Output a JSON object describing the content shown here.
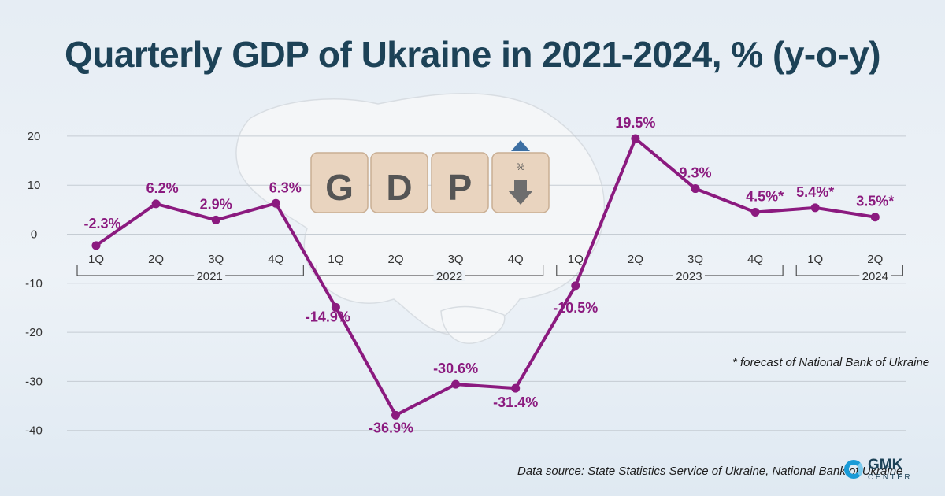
{
  "title": "Quarterly GDP of Ukraine in 2021-2024, % (y-o-y)",
  "footnote": "* forecast of National Bank of Ukraine",
  "source": "Data source: State Statistics Service of Ukraine, National Bank of Ukraine",
  "logo": {
    "name": "GMK",
    "sub": "CENTER"
  },
  "image_text": {
    "blocks": [
      "G",
      "D",
      "P",
      "%"
    ]
  },
  "colors": {
    "line": "#8b1a7f",
    "label": "#8b1a7f",
    "axis": "#333333",
    "title": "#1d4257",
    "grid": "#c5ccd3"
  },
  "chart_data": {
    "type": "line",
    "title": "Quarterly GDP of Ukraine in 2021-2024, % (y-o-y)",
    "categories": [
      "1Q",
      "2Q",
      "3Q",
      "4Q",
      "1Q",
      "2Q",
      "3Q",
      "4Q",
      "1Q",
      "2Q",
      "3Q",
      "4Q",
      "1Q",
      "2Q"
    ],
    "years": [
      {
        "label": "2021",
        "from": 0,
        "to": 3
      },
      {
        "label": "2022",
        "from": 4,
        "to": 7
      },
      {
        "label": "2023",
        "from": 8,
        "to": 11
      },
      {
        "label": "2024",
        "from": 12,
        "to": 13
      }
    ],
    "values": [
      -2.3,
      6.2,
      2.9,
      6.3,
      -14.9,
      -36.9,
      -30.6,
      -31.4,
      -10.5,
      19.5,
      9.3,
      4.5,
      5.4,
      3.5
    ],
    "data_labels": [
      "-2.3%",
      "6.2%",
      "2.9%",
      "6.3%",
      "-14.9%",
      "-36.9%",
      "-30.6%",
      "-31.4%",
      "-10.5%",
      "19.5%",
      "9.3%",
      "4.5%*",
      "5.4%*",
      "3.5%*"
    ],
    "y_ticks": [
      20,
      10,
      0,
      -10,
      -20,
      -30,
      -40
    ],
    "ylim": [
      -45,
      25
    ],
    "grid": true,
    "legend": "none"
  }
}
